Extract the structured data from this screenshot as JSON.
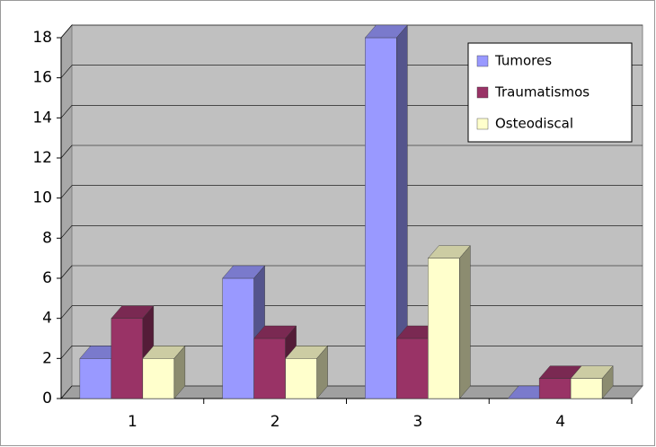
{
  "chart_data": {
    "type": "bar3d",
    "categories": [
      "1",
      "2",
      "3",
      "4"
    ],
    "series": [
      {
        "name": "Tumores",
        "color": "#9999ff",
        "values": [
          2,
          6,
          18,
          0
        ]
      },
      {
        "name": "Traumatismos",
        "color": "#993366",
        "values": [
          4,
          3,
          3,
          1
        ]
      },
      {
        "name": "Osteodiscal",
        "color": "#ffffcc",
        "values": [
          2,
          2,
          7,
          1
        ]
      }
    ],
    "ylim": [
      0,
      18
    ],
    "yticks": [
      0,
      2,
      4,
      6,
      8,
      10,
      12,
      14,
      16,
      18
    ],
    "grid": true,
    "legend": "top-right"
  }
}
